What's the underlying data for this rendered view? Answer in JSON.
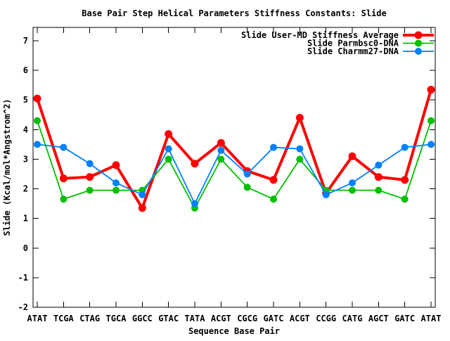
{
  "window": {
    "background": "#ffffff",
    "text_color": "#000000",
    "frame_color": "#000000"
  },
  "chart_data": {
    "type": "line",
    "title": "Base Pair Step Helical Parameters Stiffness Constants: Slide",
    "xlabel": "Sequence Base Pair",
    "ylabel": "Slide (Kcal/mol*Angstrom^2)",
    "grid": false,
    "legend_position": "top-right-inside",
    "ylim": [
      -2,
      7.45
    ],
    "y_ticks": [
      7,
      6,
      5,
      4,
      3,
      2,
      1,
      0,
      -1,
      -2
    ],
    "categories": [
      "ATAT",
      "TCGA",
      "CTAG",
      "TGCA",
      "GGCC",
      "GTAC",
      "TATA",
      "ACGT",
      "CGCG",
      "GATC",
      "ACGT",
      "CCGG",
      "CATG",
      "AGCT",
      "GATC",
      "ATAT"
    ],
    "series": [
      {
        "name": "Slide User-MD Stiffness Average",
        "color": "#ff0000",
        "marker": "filled-circle",
        "marker_radius": 5.5,
        "line_width": 4,
        "values": [
          5.05,
          2.35,
          2.4,
          2.8,
          1.35,
          3.85,
          2.85,
          3.55,
          2.6,
          2.3,
          4.4,
          1.85,
          3.1,
          2.4,
          2.3,
          5.35
        ]
      },
      {
        "name": "Slide Parmbsc0-DNA",
        "color": "#00c000",
        "marker": "filled-circle",
        "marker_radius": 5,
        "line_width": 1.8,
        "values": [
          4.3,
          1.65,
          1.95,
          1.95,
          1.95,
          3.0,
          1.35,
          3.0,
          2.05,
          1.65,
          3.0,
          1.95,
          1.95,
          1.95,
          1.65,
          4.3
        ]
      },
      {
        "name": "Slide Charmm27-DNA",
        "color": "#0080ff",
        "marker": "filled-circle",
        "marker_radius": 5,
        "line_width": 1.8,
        "values": [
          3.5,
          3.4,
          2.85,
          2.2,
          1.8,
          3.35,
          1.5,
          3.3,
          2.5,
          3.4,
          3.35,
          1.8,
          2.2,
          2.8,
          3.4,
          3.5
        ]
      }
    ]
  }
}
